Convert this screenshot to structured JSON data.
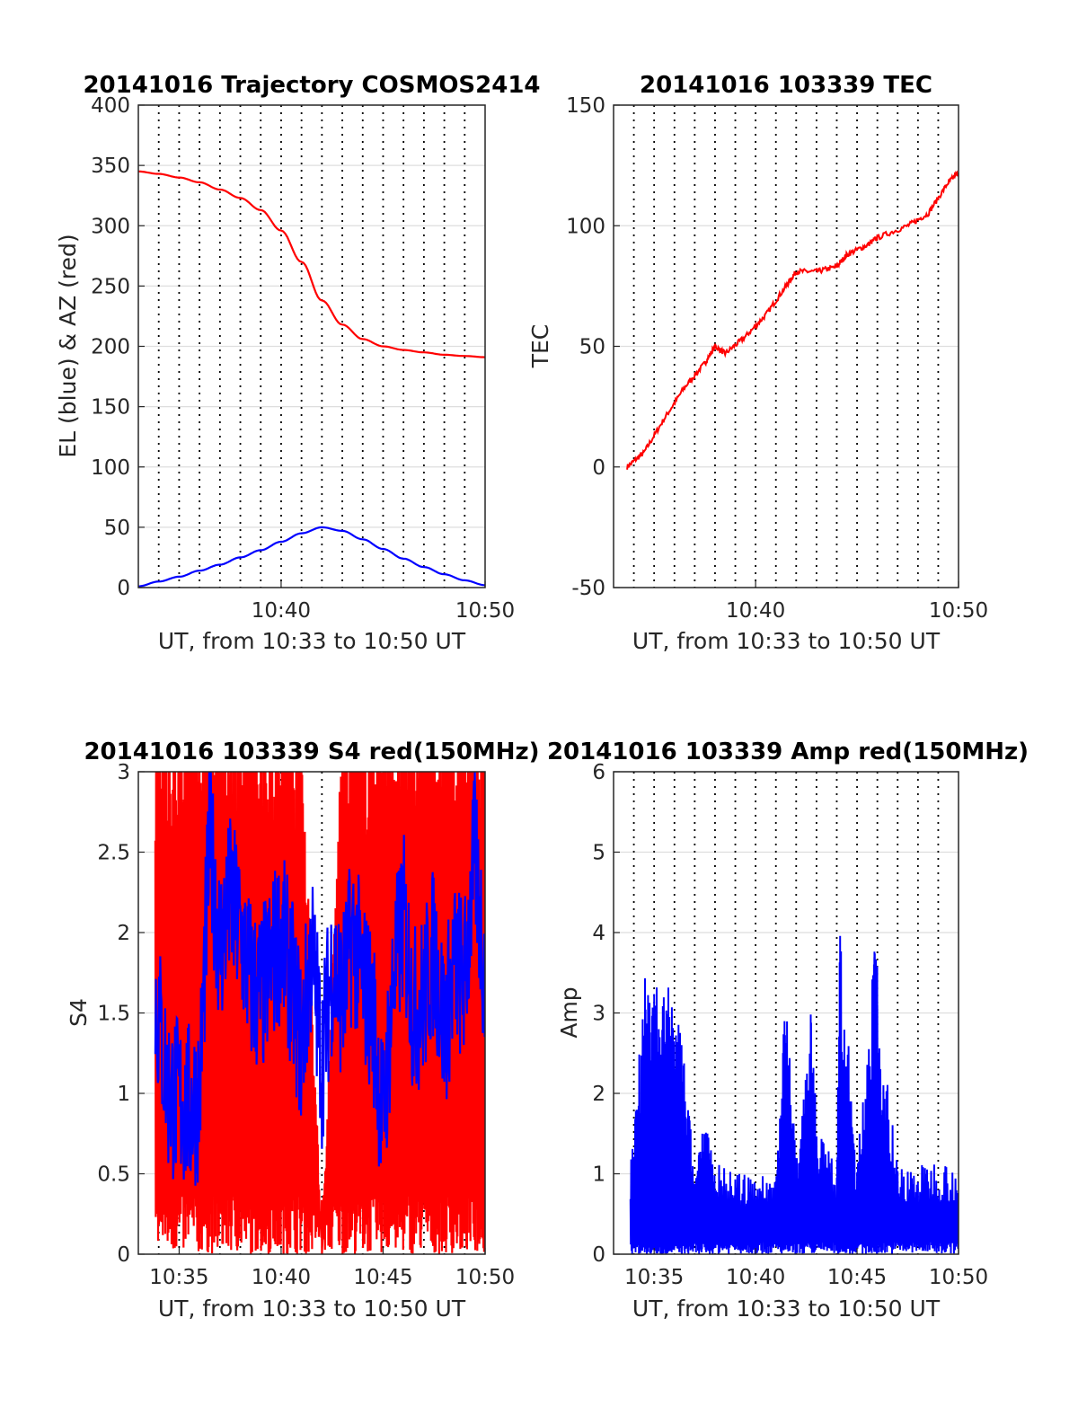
{
  "chart_data": [
    {
      "type": "line",
      "title": "20141016 Trajectory COSMOS2414",
      "xlabel": "UT, from 10:33 to 10:50 UT",
      "ylabel": "EL (blue) & AZ (red)",
      "xlim": [
        "10:33",
        "10:50"
      ],
      "xticks": [
        "10:40",
        "10:50"
      ],
      "ylim": [
        0,
        400
      ],
      "yticks": [
        "0",
        "50",
        "100",
        "150",
        "200",
        "250",
        "300",
        "350",
        "400"
      ],
      "grid": true,
      "series": [
        {
          "color": "#ff0000",
          "x": [
            "10:33",
            "10:34",
            "10:35",
            "10:36",
            "10:37",
            "10:38",
            "10:39",
            "10:40",
            "10:41",
            "10:42",
            "10:43",
            "10:44",
            "10:45",
            "10:46",
            "10:47",
            "10:48",
            "10:49",
            "10:50"
          ],
          "values": [
            345,
            343,
            340,
            336,
            330,
            323,
            313,
            296,
            270,
            238,
            218,
            206,
            200,
            197,
            195,
            193,
            192,
            191
          ]
        },
        {
          "color": "#0000ff",
          "x": [
            "10:33",
            "10:34",
            "10:35",
            "10:36",
            "10:37",
            "10:38",
            "10:39",
            "10:40",
            "10:41",
            "10:42",
            "10:43",
            "10:44",
            "10:45",
            "10:46",
            "10:47",
            "10:48",
            "10:49",
            "10:50"
          ],
          "values": [
            1,
            5,
            9,
            14,
            19,
            25,
            31,
            38,
            45,
            50,
            47,
            40,
            32,
            24,
            17,
            11,
            6,
            2
          ]
        }
      ]
    },
    {
      "type": "line",
      "title": "20141016 103339 TEC",
      "xlabel": "UT, from 10:33 to 10:50 UT",
      "ylabel": "TEC",
      "xlim": [
        "10:33",
        "10:50"
      ],
      "xticks": [
        "10:40",
        "10:50"
      ],
      "ylim": [
        -50,
        150
      ],
      "yticks": [
        "-50",
        "0",
        "50",
        "100",
        "150"
      ],
      "grid": true,
      "series": [
        {
          "color": "#ff0000",
          "x": [
            "10:33:40",
            "10:34:30",
            "10:35:30",
            "10:36:30",
            "10:37:30",
            "10:38:00",
            "10:38:30",
            "10:39:30",
            "10:40:30",
            "10:41:30",
            "10:42:00",
            "10:43:00",
            "10:44:00",
            "10:44:30",
            "10:45:30",
            "10:46:00",
            "10:47:30",
            "10:48:30",
            "10:49:30",
            "10:50:00"
          ],
          "values": [
            0,
            6,
            20,
            33,
            43,
            50,
            47,
            54,
            63,
            75,
            81,
            81,
            83,
            88,
            92,
            95,
            100,
            105,
            118,
            122
          ]
        }
      ]
    },
    {
      "type": "line",
      "title": "20141016 103339 S4 red(150MHz)",
      "xlabel": "UT, from 10:33 to 10:50 UT",
      "ylabel": "S4",
      "xlim": [
        "10:33",
        "10:50"
      ],
      "xticks": [
        "10:35",
        "10:40",
        "10:45",
        "10:50"
      ],
      "ylim": [
        0,
        3
      ],
      "yticks": [
        "0",
        "0.5",
        "1",
        "1.5",
        "2",
        "2.5",
        "3"
      ],
      "grid": true,
      "series": [
        {
          "color": "#ff0000",
          "x": [
            "10:33:50",
            "10:35",
            "10:36",
            "10:37",
            "10:38",
            "10:39",
            "10:40",
            "10:41",
            "10:42",
            "10:43",
            "10:44",
            "10:45",
            "10:46",
            "10:47",
            "10:48",
            "10:49",
            "10:50"
          ],
          "values": [
            3,
            3,
            3,
            3,
            3,
            3,
            3,
            3,
            0,
            3,
            3,
            3,
            3,
            3,
            3,
            3,
            3
          ]
        },
        {
          "color": "#0000ff",
          "x": [
            "10:33:50",
            "10:34:30",
            "10:35",
            "10:35:30",
            "10:36",
            "10:36:30",
            "10:37",
            "10:37:30",
            "10:38",
            "10:38:30",
            "10:39",
            "10:39:30",
            "10:40",
            "10:40:30",
            "10:41",
            "10:41:30",
            "10:42",
            "10:42:30",
            "10:43",
            "10:43:30",
            "10:44",
            "10:44:30",
            "10:45",
            "10:45:30",
            "10:46",
            "10:46:30",
            "10:47",
            "10:47:30",
            "10:48",
            "10:48:30",
            "10:49",
            "10:49:30",
            "10:50"
          ],
          "values": [
            1.6,
            1.0,
            0.95,
            0.9,
            1.0,
            2.6,
            1.9,
            2.2,
            2.0,
            1.7,
            1.6,
            1.8,
            2.0,
            1.7,
            1.3,
            1.9,
            1.2,
            1.8,
            1.6,
            2.0,
            1.7,
            1.5,
            0.8,
            1.7,
            2.1,
            1.5,
            1.6,
            1.9,
            1.4,
            1.8,
            1.7,
            2.5,
            1.7
          ]
        }
      ]
    },
    {
      "type": "line",
      "title": "20141016 103339 Amp red(150MHz)",
      "xlabel": "UT, from 10:33 to 10:50 UT",
      "ylabel": "Amp",
      "xlim": [
        "10:33",
        "10:50"
      ],
      "xticks": [
        "10:35",
        "10:40",
        "10:45",
        "10:50"
      ],
      "ylim": [
        0,
        6
      ],
      "yticks": [
        "0",
        "1",
        "2",
        "3",
        "4",
        "5",
        "6"
      ],
      "grid": true,
      "series": [
        {
          "color": "#0000ff",
          "x": [
            "10:33:50",
            "10:34:30",
            "10:35",
            "10:35:30",
            "10:36",
            "10:36:30",
            "10:37",
            "10:37:30",
            "10:38",
            "10:39",
            "10:40",
            "10:41",
            "10:41:30",
            "10:42",
            "10:42:40",
            "10:43",
            "10:44",
            "10:44:10",
            "10:45",
            "10:45:50",
            "10:46",
            "10:47",
            "10:48",
            "10:49",
            "10:50"
          ],
          "values": [
            1.1,
            3.7,
            3.3,
            3.4,
            3.2,
            2.4,
            1.0,
            1.7,
            1.2,
            1.0,
            1.0,
            1.0,
            3.4,
            1.1,
            3.2,
            1.9,
            1.0,
            4.1,
            1.1,
            3.9,
            3.6,
            1.1,
            1.1,
            1.2,
            1.1
          ]
        }
      ]
    }
  ]
}
